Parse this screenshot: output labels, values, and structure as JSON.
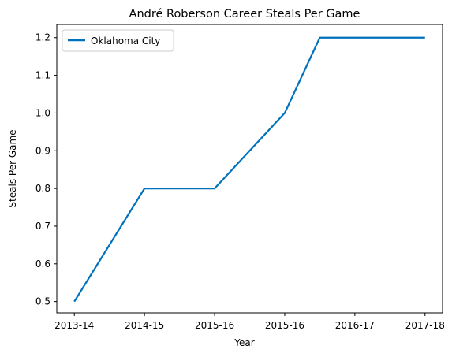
{
  "chart_data": {
    "type": "line",
    "title": "André Roberson Career Steals Per Game",
    "xlabel": "Year",
    "ylabel": "Steals Per Game",
    "categories": [
      "2013-14",
      "2014-15",
      "2015-16",
      "2015-16",
      "2016-17",
      "2017-18"
    ],
    "x": [
      0,
      1,
      2,
      3,
      4,
      5
    ],
    "series": [
      {
        "name": "Oklahoma City",
        "color": "#0072BD",
        "points": [
          {
            "x": 0,
            "y": 0.5
          },
          {
            "x": 1,
            "y": 0.8
          },
          {
            "x": 2,
            "y": 0.8
          },
          {
            "x": 3,
            "y": 1.0
          },
          {
            "x": 3.5,
            "y": 1.2
          },
          {
            "x": 5,
            "y": 1.2
          }
        ]
      }
    ],
    "ylim": [
      0.47,
      1.235
    ],
    "xlim": [
      -0.25,
      5.25
    ],
    "yticks": [
      0.5,
      0.6,
      0.7,
      0.8,
      0.9,
      1.0,
      1.1,
      1.2
    ],
    "ytick_labels": [
      "0.5",
      "0.6",
      "0.7",
      "0.8",
      "0.9",
      "1.0",
      "1.1",
      "1.2"
    ],
    "xticks": [
      0,
      1,
      2,
      3,
      4,
      5
    ],
    "legend_position": "top-left",
    "grid": false
  }
}
